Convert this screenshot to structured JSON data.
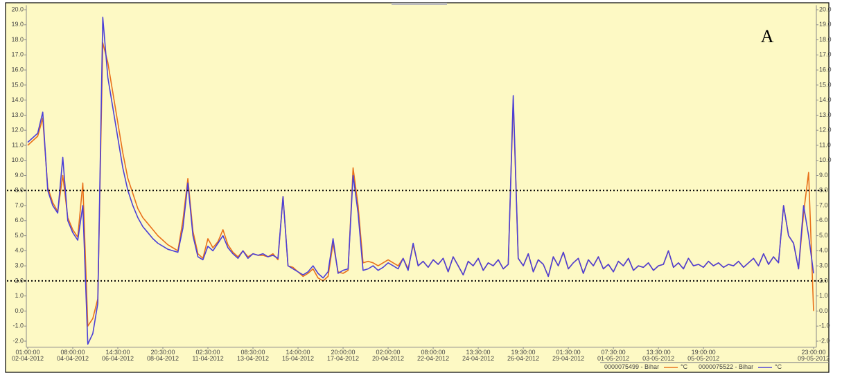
{
  "chart_data": {
    "type": "line",
    "annotation": "A",
    "unit": "°C",
    "categories": [
      "01:00:00",
      null,
      null,
      null,
      null,
      null,
      null,
      null,
      null,
      "08:00:00",
      null,
      null,
      null,
      null,
      null,
      null,
      null,
      null,
      "14:30:00",
      null,
      null,
      null,
      null,
      null,
      null,
      null,
      null,
      "20:30:00",
      null,
      null,
      null,
      null,
      null,
      null,
      null,
      null,
      "02:30:00",
      null,
      null,
      null,
      null,
      null,
      null,
      null,
      null,
      "08:30:00",
      null,
      null,
      null,
      null,
      null,
      null,
      null,
      null,
      "14:00:00",
      null,
      null,
      null,
      null,
      null,
      null,
      null,
      null,
      "20:00:00",
      null,
      null,
      null,
      null,
      null,
      null,
      null,
      null,
      "02:00:00",
      null,
      null,
      null,
      null,
      null,
      null,
      null,
      null,
      "08:00:00",
      null,
      null,
      null,
      null,
      null,
      null,
      null,
      null,
      "13:30:00",
      null,
      null,
      null,
      null,
      null,
      null,
      null,
      null,
      "19:30:00",
      null,
      null,
      null,
      null,
      null,
      null,
      null,
      null,
      "01:30:00",
      null,
      null,
      null,
      null,
      null,
      null,
      null,
      null,
      "07:30:00",
      null,
      null,
      null,
      null,
      null,
      null,
      null,
      null,
      "13:30:00",
      null,
      null,
      null,
      null,
      null,
      null,
      null,
      null,
      "19:00:00",
      null,
      null,
      null,
      null,
      null,
      null,
      null,
      null,
      null,
      null,
      null,
      null,
      null,
      null,
      null,
      null,
      null,
      null,
      null,
      null,
      null,
      "23:00:00"
    ],
    "category_dates": [
      "02-04-2012",
      null,
      null,
      null,
      null,
      null,
      null,
      null,
      null,
      "04-04-2012",
      null,
      null,
      null,
      null,
      null,
      null,
      null,
      null,
      "06-04-2012",
      null,
      null,
      null,
      null,
      null,
      null,
      null,
      null,
      "08-04-2012",
      null,
      null,
      null,
      null,
      null,
      null,
      null,
      null,
      "11-04-2012",
      null,
      null,
      null,
      null,
      null,
      null,
      null,
      null,
      "13-04-2012",
      null,
      null,
      null,
      null,
      null,
      null,
      null,
      null,
      "15-04-2012",
      null,
      null,
      null,
      null,
      null,
      null,
      null,
      null,
      "17-04-2012",
      null,
      null,
      null,
      null,
      null,
      null,
      null,
      null,
      "20-04-2012",
      null,
      null,
      null,
      null,
      null,
      null,
      null,
      null,
      "22-04-2012",
      null,
      null,
      null,
      null,
      null,
      null,
      null,
      null,
      "24-04-2012",
      null,
      null,
      null,
      null,
      null,
      null,
      null,
      null,
      "26-04-2012",
      null,
      null,
      null,
      null,
      null,
      null,
      null,
      null,
      "29-04-2012",
      null,
      null,
      null,
      null,
      null,
      null,
      null,
      null,
      "01-05-2012",
      null,
      null,
      null,
      null,
      null,
      null,
      null,
      null,
      "03-05-2012",
      null,
      null,
      null,
      null,
      null,
      null,
      null,
      null,
      "05-05-2012",
      null,
      null,
      null,
      null,
      null,
      null,
      null,
      null,
      null,
      null,
      null,
      null,
      null,
      null,
      null,
      null,
      null,
      null,
      null,
      null,
      null,
      "09-05-2012"
    ],
    "series": [
      {
        "name": "0000075499 - Bihar",
        "color": "#e8701a",
        "values": [
          11.0,
          11.3,
          11.6,
          12.8,
          8.2,
          7.2,
          6.6,
          9.0,
          6.2,
          5.4,
          4.9,
          8.5,
          -1.0,
          -0.5,
          0.8,
          17.8,
          16.5,
          14.5,
          12.5,
          10.5,
          8.8,
          7.8,
          6.8,
          6.2,
          5.8,
          5.4,
          5.0,
          4.7,
          4.4,
          4.2,
          4.0,
          6.0,
          8.8,
          5.3,
          3.8,
          3.5,
          4.8,
          4.2,
          4.6,
          5.4,
          4.4,
          3.9,
          3.6,
          4.0,
          3.6,
          3.8,
          3.7,
          3.7,
          3.6,
          3.8,
          3.4,
          7.6,
          3.0,
          2.9,
          2.6,
          2.3,
          2.5,
          2.8,
          2.2,
          2.0,
          2.3,
          4.5,
          2.6,
          2.5,
          2.7,
          9.5,
          7.0,
          3.2,
          3.3,
          3.2,
          3.0,
          3.2,
          3.4,
          3.2,
          3.0,
          3.5,
          2.8,
          4.4,
          3.0,
          3.3,
          2.9,
          3.4,
          3.1,
          3.5,
          2.6,
          3.6,
          3.0,
          2.4,
          3.3,
          3.0,
          3.5,
          2.7,
          3.2,
          3.0,
          3.4,
          2.8,
          3.1,
          14.0,
          3.5,
          3.0,
          3.8,
          2.6,
          3.4,
          3.1,
          2.3,
          3.6,
          3.0,
          3.9,
          2.8,
          3.2,
          3.5,
          2.5,
          3.4,
          3.0,
          3.6,
          2.8,
          3.1,
          2.6,
          3.3,
          3.0,
          3.5,
          2.7,
          3.0,
          2.9,
          3.2,
          2.7,
          3.0,
          3.1,
          4.0,
          2.9,
          3.2,
          2.8,
          3.5,
          3.0,
          3.1,
          2.9,
          3.3,
          3.0,
          3.2,
          2.9,
          3.1,
          3.0,
          3.3,
          2.9,
          3.2,
          3.5,
          3.0,
          3.8,
          3.1,
          3.6,
          3.2,
          7.0,
          5.0,
          4.5,
          2.8,
          6.5,
          9.2,
          0.0
        ]
      },
      {
        "name": "0000075522 - Bihar",
        "color": "#4b3fd8",
        "values": [
          11.2,
          11.5,
          11.8,
          13.2,
          8.0,
          7.0,
          6.5,
          10.2,
          6.0,
          5.2,
          4.7,
          7.0,
          -2.2,
          -1.5,
          0.5,
          19.5,
          15.5,
          13.5,
          11.5,
          9.5,
          8.0,
          7.0,
          6.2,
          5.6,
          5.2,
          4.8,
          4.5,
          4.3,
          4.1,
          4.0,
          3.9,
          5.5,
          8.5,
          5.0,
          3.6,
          3.4,
          4.3,
          4.0,
          4.5,
          5.0,
          4.2,
          3.8,
          3.5,
          4.0,
          3.5,
          3.8,
          3.7,
          3.8,
          3.6,
          3.7,
          3.5,
          7.6,
          3.0,
          2.8,
          2.6,
          2.4,
          2.6,
          3.0,
          2.5,
          2.2,
          2.6,
          4.8,
          2.5,
          2.7,
          2.8,
          9.0,
          6.5,
          2.7,
          2.8,
          3.0,
          2.7,
          2.9,
          3.2,
          3.0,
          2.8,
          3.5,
          2.7,
          4.5,
          3.0,
          3.3,
          2.9,
          3.4,
          3.1,
          3.5,
          2.6,
          3.6,
          3.0,
          2.4,
          3.3,
          3.0,
          3.5,
          2.7,
          3.2,
          3.0,
          3.4,
          2.8,
          3.1,
          14.3,
          3.5,
          3.0,
          3.8,
          2.6,
          3.4,
          3.1,
          2.3,
          3.6,
          3.0,
          3.9,
          2.8,
          3.2,
          3.5,
          2.5,
          3.4,
          3.0,
          3.6,
          2.8,
          3.1,
          2.6,
          3.3,
          3.0,
          3.5,
          2.7,
          3.0,
          2.9,
          3.2,
          2.7,
          3.0,
          3.1,
          4.0,
          2.9,
          3.2,
          2.8,
          3.5,
          3.0,
          3.1,
          2.9,
          3.3,
          3.0,
          3.2,
          2.9,
          3.1,
          3.0,
          3.3,
          2.9,
          3.2,
          3.5,
          3.0,
          3.8,
          3.1,
          3.6,
          3.2,
          7.0,
          5.0,
          4.5,
          2.8,
          7.0,
          5.0,
          2.5
        ]
      }
    ],
    "ylim": [
      -2.4,
      20.3
    ],
    "yticks": [
      {
        "value": -2,
        "label": "-2.0"
      },
      {
        "value": -1,
        "label": "-1.0"
      },
      {
        "value": 0,
        "label": "0.0"
      },
      {
        "value": 1,
        "label": "1.0"
      },
      {
        "value": 2,
        "label": "2.0"
      },
      {
        "value": 3,
        "label": "3.0"
      },
      {
        "value": 4,
        "label": "4.0"
      },
      {
        "value": 5,
        "label": "5.0"
      },
      {
        "value": 6,
        "label": "6.0"
      },
      {
        "value": 7,
        "label": "7.0"
      },
      {
        "value": 8,
        "label": "8.0"
      },
      {
        "value": 9,
        "label": "9.0"
      },
      {
        "value": 10,
        "label": "10.0"
      },
      {
        "value": 11,
        "label": "11.0"
      },
      {
        "value": 12,
        "label": "12.0"
      },
      {
        "value": 13,
        "label": "13.0"
      },
      {
        "value": 14,
        "label": "14.0"
      },
      {
        "value": 15,
        "label": "15.0"
      },
      {
        "value": 16,
        "label": "16.0"
      },
      {
        "value": 17,
        "label": "17.0"
      },
      {
        "value": 18,
        "label": "18.0"
      },
      {
        "value": 19,
        "label": "19.0"
      },
      {
        "value": 20,
        "label": "20.0"
      }
    ],
    "reference_lines": [
      8,
      2
    ]
  }
}
